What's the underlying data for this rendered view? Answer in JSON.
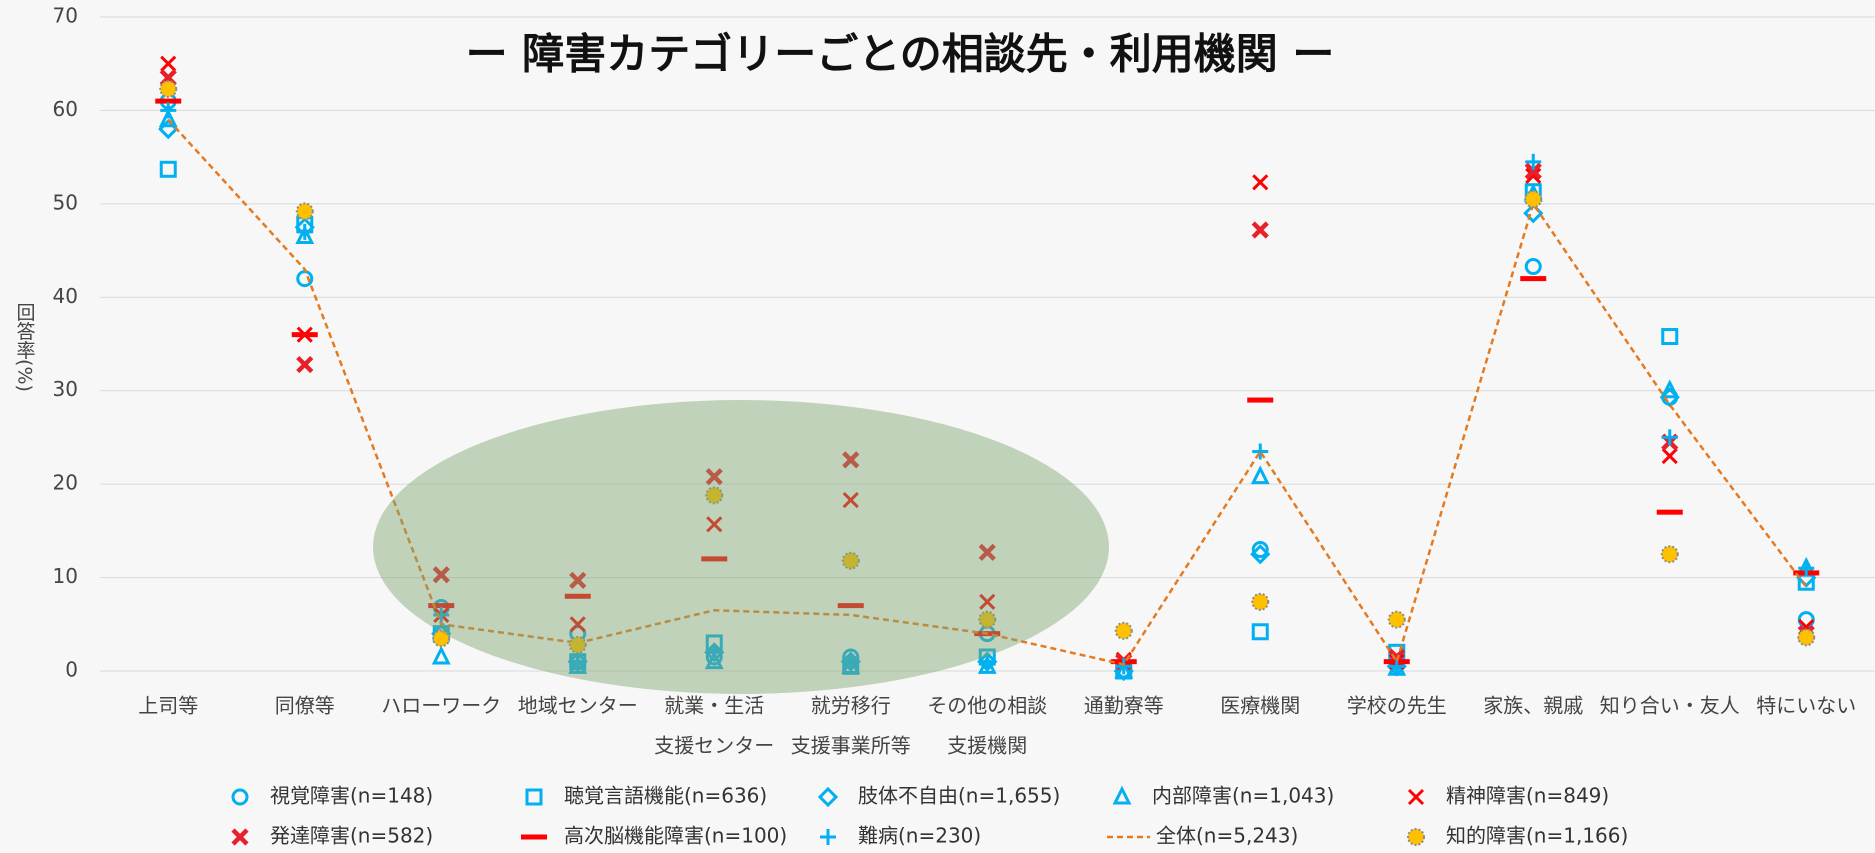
{
  "chart_data": {
    "type": "scatter",
    "title": "ー 障害カテゴリーごとの相談先・利用機関 ー",
    "y_label": "回答率(%)",
    "categories": [
      [
        "上司等"
      ],
      [
        "同僚等"
      ],
      [
        "ハローワーク"
      ],
      [
        "地域センター"
      ],
      [
        "就業・生活",
        "支援センター"
      ],
      [
        "就労移行",
        "支援事業所等"
      ],
      [
        "その他の相談",
        "支援機関"
      ],
      [
        "通勤寮等"
      ],
      [
        "医療機関"
      ],
      [
        "学校の先生"
      ],
      [
        "家族、親戚"
      ],
      [
        "知り合い・友人"
      ],
      [
        "特にいない"
      ]
    ],
    "ylim": [
      0,
      70
    ],
    "yticks": [
      0,
      10,
      20,
      30,
      40,
      50,
      60,
      70
    ],
    "grid": true,
    "legend": "bottom",
    "series": [
      {
        "name": "視覚障害(n=148)",
        "marker": "circle",
        "color": "#00b0f0",
        "values": [
          61,
          42,
          6.8,
          4,
          1.5,
          1.5,
          4,
          0,
          13,
          1,
          43.3,
          29.3,
          5.5
        ]
      },
      {
        "name": "聴覚言語機能(n=636)",
        "marker": "square",
        "color": "#00b0f0",
        "values": [
          53.7,
          47.8,
          4,
          1,
          3,
          0.5,
          1.5,
          0,
          4.2,
          2,
          51.3,
          35.8,
          9.5
        ]
      },
      {
        "name": "肢体不自由(n=1,655)",
        "marker": "diamond",
        "color": "#00b0f0",
        "values": [
          58,
          47.5,
          4,
          1,
          2,
          1,
          1,
          0,
          12.5,
          0.5,
          49,
          29.3,
          10
        ]
      },
      {
        "name": "内部障害(n=1,043)",
        "marker": "triangle",
        "color": "#00b0f0",
        "values": [
          59,
          46.5,
          1.5,
          0.5,
          1,
          0.5,
          0.5,
          0,
          20.8,
          0.3,
          51,
          30,
          11
        ]
      },
      {
        "name": "精神障害(n=849)",
        "marker": "x",
        "color": "#ff0000",
        "values": [
          65,
          36,
          6,
          5,
          15.7,
          18.3,
          7.4,
          1.2,
          52.3,
          1,
          53,
          23,
          4.7
        ]
      },
      {
        "name": "発達障害(n=582)",
        "marker": "xbold",
        "color": "#e8202a",
        "values": [
          63.5,
          32.8,
          10.3,
          9.7,
          20.8,
          22.6,
          12.7,
          1,
          47.2,
          1.5,
          53.5,
          24.5,
          4
        ]
      },
      {
        "name": "高次脳機能障害(n=100)",
        "marker": "dash",
        "color": "#ff0000",
        "values": [
          61,
          36,
          7,
          8,
          12,
          7,
          4,
          1,
          29,
          1,
          42,
          17,
          10.5
        ]
      },
      {
        "name": "難病(n=230)",
        "marker": "plus",
        "color": "#00b0f0",
        "values": [
          60,
          47,
          6,
          1,
          2,
          1,
          1,
          0.5,
          23.5,
          0.5,
          54.5,
          25,
          11
        ]
      },
      {
        "name": "全体(n=5,243)",
        "marker": "line",
        "color": "#e57a1f",
        "values": [
          59,
          43,
          5,
          3,
          6.5,
          6,
          4,
          0.7,
          23.5,
          1,
          50,
          28.5,
          9
        ]
      },
      {
        "name": "知的障害(n=1,166)",
        "marker": "dot",
        "color": "#ffc000",
        "values": [
          62.3,
          49.2,
          3.5,
          2.8,
          18.8,
          11.8,
          5.5,
          4.3,
          7.4,
          5.5,
          50.5,
          12.5,
          3.6
        ]
      }
    ]
  }
}
